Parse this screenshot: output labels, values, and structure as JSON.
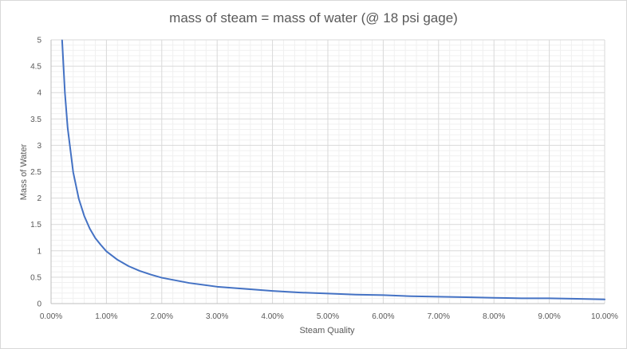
{
  "chart_data": {
    "type": "line",
    "title": "mass of steam = mass of water (@ 18 psi gage)",
    "xlabel": "Steam Quality",
    "ylabel": "Mass of Water",
    "xlim": [
      0,
      0.1
    ],
    "ylim": [
      0,
      5
    ],
    "x_ticks": [
      0,
      0.01,
      0.02,
      0.03,
      0.04,
      0.05,
      0.06,
      0.07,
      0.08,
      0.09,
      0.1
    ],
    "x_tick_labels": [
      "0.00%",
      "1.00%",
      "2.00%",
      "3.00%",
      "4.00%",
      "5.00%",
      "6.00%",
      "7.00%",
      "8.00%",
      "9.00%",
      "10.00%"
    ],
    "y_ticks": [
      0,
      0.5,
      1,
      1.5,
      2,
      2.5,
      3,
      3.5,
      4,
      4.5,
      5
    ],
    "y_tick_labels": [
      "0",
      "0.5",
      "1",
      "1.5",
      "2",
      "2.5",
      "3",
      "3.5",
      "4",
      "4.5",
      "5"
    ],
    "grid": true,
    "series_color": "#4472c4",
    "series": [
      {
        "x": [
          0.002,
          0.0025,
          0.003,
          0.004,
          0.005,
          0.006,
          0.007,
          0.008,
          0.009,
          0.01,
          0.012,
          0.014,
          0.016,
          0.018,
          0.02,
          0.025,
          0.03,
          0.035,
          0.04,
          0.045,
          0.05,
          0.055,
          0.06,
          0.065,
          0.07,
          0.075,
          0.08,
          0.085,
          0.09,
          0.095,
          0.1
        ],
        "y": [
          4.99,
          4.0,
          3.33,
          2.49,
          1.99,
          1.66,
          1.42,
          1.24,
          1.11,
          0.99,
          0.83,
          0.71,
          0.62,
          0.55,
          0.49,
          0.39,
          0.32,
          0.28,
          0.24,
          0.21,
          0.19,
          0.17,
          0.16,
          0.14,
          0.13,
          0.12,
          0.11,
          0.1,
          0.1,
          0.09,
          0.08
        ]
      }
    ]
  }
}
